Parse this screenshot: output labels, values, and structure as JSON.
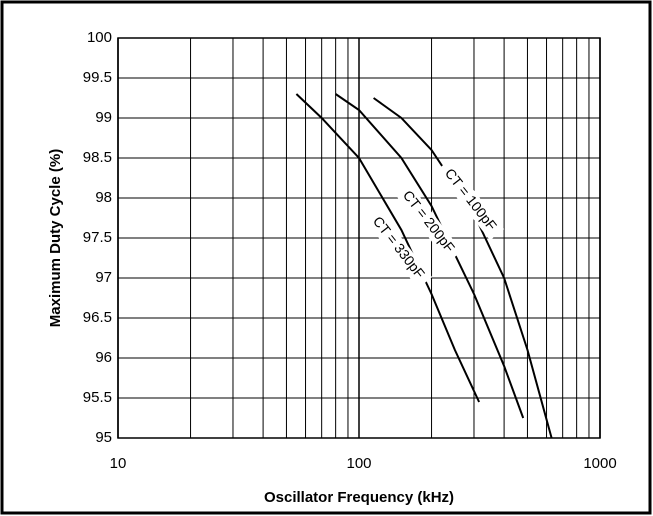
{
  "chart_data": {
    "type": "line",
    "xlabel": "Oscillator Frequency (kHz)",
    "ylabel": "Maximum Duty Cycle (%)",
    "xscale": "log",
    "xlim": [
      10,
      1000
    ],
    "ylim": [
      95,
      100
    ],
    "xticks": [
      10,
      100,
      1000
    ],
    "xminor": [
      20,
      30,
      40,
      50,
      60,
      70,
      80,
      90,
      200,
      300,
      400,
      500,
      600,
      700,
      800,
      900
    ],
    "yticks": [
      95,
      95.5,
      96,
      96.5,
      97,
      97.5,
      98,
      98.5,
      99,
      99.5,
      100
    ],
    "grid": true,
    "series": [
      {
        "name": "CT = 330pF",
        "color": "#000000",
        "x": [
          55,
          70,
          100,
          150,
          200,
          250,
          315
        ],
        "values": [
          99.3,
          99.0,
          98.5,
          97.6,
          96.8,
          96.1,
          95.45
        ]
      },
      {
        "name": "CT = 200pF",
        "color": "#000000",
        "x": [
          80,
          100,
          150,
          200,
          300,
          400,
          480
        ],
        "values": [
          99.3,
          99.1,
          98.5,
          97.9,
          96.8,
          95.9,
          95.25
        ]
      },
      {
        "name": "CT = 100pF",
        "color": "#000000",
        "x": [
          115,
          150,
          200,
          300,
          400,
          500,
          630
        ],
        "values": [
          99.25,
          99.0,
          98.6,
          97.8,
          97.0,
          96.1,
          95.0
        ]
      }
    ]
  }
}
